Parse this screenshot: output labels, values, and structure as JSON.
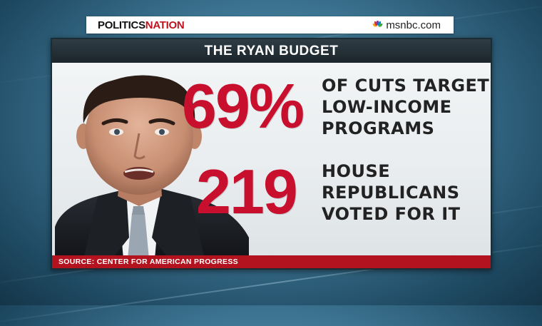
{
  "topbar": {
    "show_title_part1": "POLITICS",
    "show_title_part2": "NATION",
    "network": "msnbc.com",
    "network_icon": "peacock-logo-icon"
  },
  "card": {
    "title": "THE RYAN BUDGET",
    "stats": [
      {
        "value": "69%",
        "label_lines": [
          "OF CUTS TARGET",
          "LOW-INCOME",
          "PROGRAMS"
        ]
      },
      {
        "value": "219",
        "label_lines": [
          "HOUSE",
          "REPUBLICANS",
          "VOTED FOR IT"
        ]
      }
    ],
    "source": "SOURCE: CENTER FOR AMERICAN PROGRESS"
  },
  "colors": {
    "accent_red": "#c8102e",
    "source_bar": "#b3121f",
    "header_dark": "#1b252b",
    "background_blue": "#3c7390"
  }
}
